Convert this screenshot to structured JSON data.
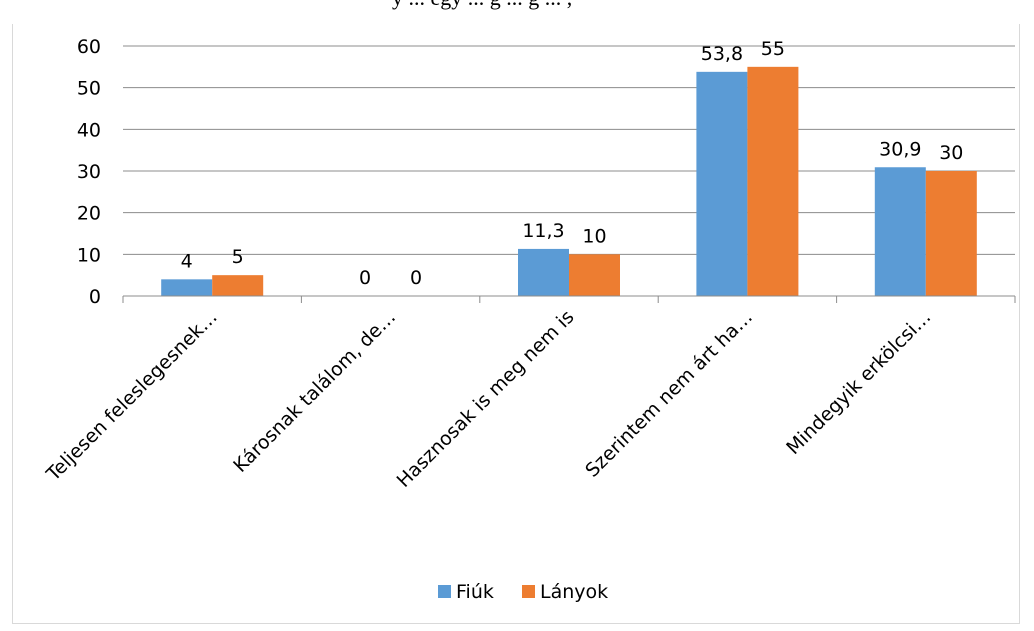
{
  "caption_fragment": "y ... egy ... g ... g ... ,",
  "colors": {
    "series_1": "#5b9bd5",
    "series_2": "#ed7d31",
    "gridline": "#8c8c8c",
    "axis": "#8c8c8c"
  },
  "chart_data": {
    "type": "bar",
    "categories": [
      "Teljesen feleslegesnek…",
      "Károsnak találom, de…",
      "Hasznosak is meg nem is",
      "Szerintem nem árt ha…",
      "Mindegyik erkölcsi…"
    ],
    "series": [
      {
        "name": "Fiúk",
        "values": [
          4,
          0,
          11.3,
          53.8,
          30.9
        ],
        "labels": [
          "4",
          "0",
          "11,3",
          "53,8",
          "30,9"
        ]
      },
      {
        "name": "Lányok",
        "values": [
          5,
          0,
          10,
          55,
          30
        ],
        "labels": [
          "5",
          "0",
          "10",
          "55",
          "30"
        ]
      }
    ],
    "y_ticks": [
      "0",
      "10",
      "20",
      "30",
      "40",
      "50",
      "60"
    ],
    "ylim": [
      0,
      60
    ],
    "grid": true,
    "legend_position": "bottom",
    "title": "",
    "xlabel": "",
    "ylabel": ""
  }
}
